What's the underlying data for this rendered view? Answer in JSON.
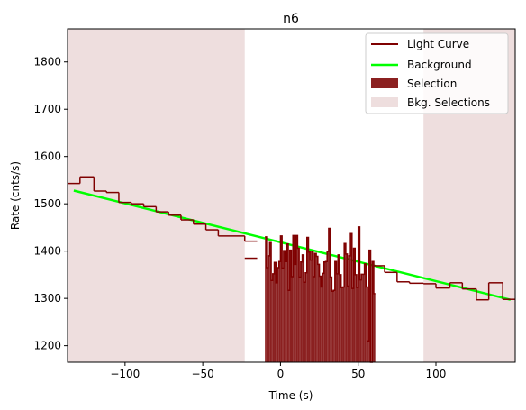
{
  "chart_data": {
    "type": "line",
    "title": "n6",
    "xlabel": "Time (s)",
    "ylabel": "Rate (cnts/s)",
    "xlim": [
      -137,
      151
    ],
    "ylim": [
      1165,
      1870
    ],
    "xticks": [
      -100,
      -50,
      0,
      50,
      100
    ],
    "xtick_labels": [
      "−100",
      "−50",
      "0",
      "50",
      "100"
    ],
    "yticks": [
      1200,
      1300,
      1400,
      1500,
      1600,
      1700,
      1800
    ],
    "ytick_labels": [
      "1200",
      "1300",
      "1400",
      "1500",
      "1600",
      "1700",
      "1800"
    ],
    "grid": false,
    "legend_position": "top-right",
    "colors": {
      "light_curve": "#7f0000",
      "background": "#00ff00",
      "selection": "#8b2020",
      "bkg_selection": "#eedede"
    },
    "legend": [
      {
        "label": "Light Curve",
        "kind": "line",
        "color": "#7f0000"
      },
      {
        "label": "Background",
        "kind": "line",
        "color": "#00ff00"
      },
      {
        "label": "Selection",
        "kind": "patch",
        "color": "#8b2020"
      },
      {
        "label": "Bkg. Selections",
        "kind": "patch",
        "color": "#eedede"
      }
    ],
    "bkg_selections": [
      [
        -137,
        -23
      ],
      [
        92,
        151
      ]
    ],
    "background_fit": {
      "x": [
        -133,
        148
      ],
      "y": [
        1528,
        1297
      ]
    },
    "light_curve": {
      "steps": [
        [
          -137,
          -129,
          1543
        ],
        [
          -129,
          -120,
          1557
        ],
        [
          -120,
          -112,
          1527
        ],
        [
          -112,
          -104,
          1524
        ],
        [
          -104,
          -96,
          1503
        ],
        [
          -96,
          -88,
          1500
        ],
        [
          -88,
          -80,
          1494
        ],
        [
          -80,
          -72,
          1483
        ],
        [
          -72,
          -64,
          1476
        ],
        [
          -64,
          -56,
          1466
        ],
        [
          -56,
          -48,
          1457
        ],
        [
          -48,
          -40,
          1445
        ],
        [
          -40,
          -32,
          1432
        ],
        [
          -32,
          -23,
          1432
        ],
        [
          -23,
          -15,
          1421
        ],
        [
          -23,
          -15,
          1385
        ],
        [
          60,
          67,
          1369
        ],
        [
          67,
          75,
          1355
        ],
        [
          75,
          83,
          1335
        ],
        [
          83,
          92,
          1332
        ],
        [
          92,
          100,
          1331
        ],
        [
          100,
          109,
          1322
        ],
        [
          109,
          117,
          1333
        ],
        [
          117,
          126,
          1320
        ],
        [
          126,
          134,
          1297
        ],
        [
          134,
          143,
          1333
        ],
        [
          143,
          151,
          1298
        ]
      ],
      "selection_x": [
        -10,
        -9,
        -8,
        -7,
        -6,
        -5,
        -4,
        -3,
        -2,
        -1,
        0,
        1,
        2,
        3,
        4,
        5,
        6,
        7,
        8,
        9,
        10,
        11,
        12,
        13,
        14,
        15,
        16,
        17,
        18,
        19,
        20,
        21,
        22,
        23,
        24,
        25,
        26,
        27,
        28,
        29,
        30,
        31,
        32,
        33,
        34,
        35,
        36,
        37,
        38,
        39,
        40,
        41,
        42,
        43,
        44,
        45,
        46,
        47,
        48,
        49,
        50,
        51,
        52,
        53,
        54,
        55,
        56,
        57,
        58,
        59,
        60
      ],
      "selection_y": [
        1430,
        1365,
        1390,
        1418,
        1338,
        1352,
        1376,
        1333,
        1365,
        1378,
        1432,
        1364,
        1401,
        1378,
        1415,
        1317,
        1402,
        1346,
        1433,
        1372,
        1433,
        1406,
        1345,
        1377,
        1392,
        1334,
        1354,
        1429,
        1398,
        1381,
        1399,
        1346,
        1395,
        1389,
        1372,
        1347,
        1324,
        1353,
        1377,
        1378,
        1399,
        1448,
        1345,
        1315,
        1317,
        1378,
        1352,
        1392,
        1350,
        1323,
        1324,
        1416,
        1394,
        1326,
        1390,
        1437,
        1321,
        1406,
        1350,
        1323,
        1451,
        1339,
        1351,
        1351,
        1373,
        1324,
        1210,
        1402,
        1137,
        1378,
        1310
      ]
    }
  }
}
